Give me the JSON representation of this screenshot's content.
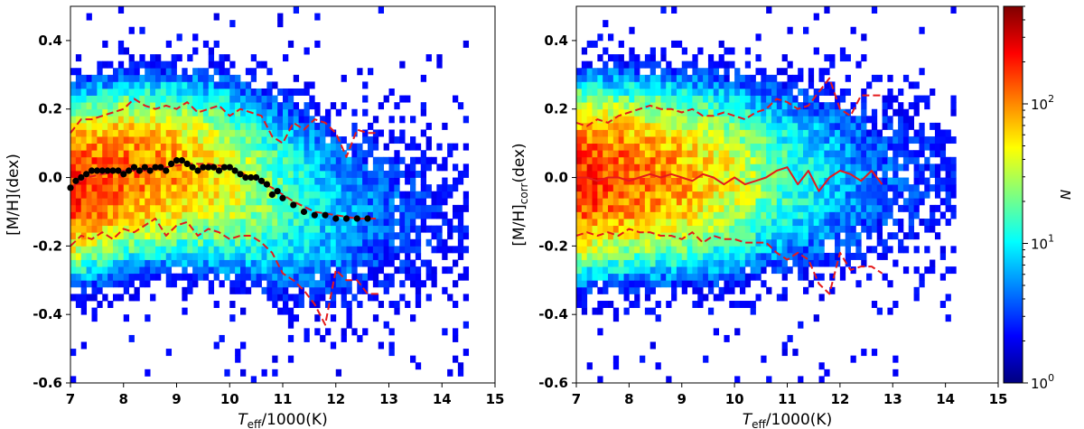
{
  "chart_data": [
    {
      "type": "heatmap",
      "panel": "left",
      "xlabel": {
        "main": "T",
        "sub": "eff",
        "rest": "/1000(K)"
      },
      "ylabel": {
        "main": "[M/H](dex)",
        "sub": ""
      },
      "xlim": [
        7,
        15
      ],
      "ylim": [
        -0.6,
        0.5
      ],
      "xticks": [
        "7",
        "8",
        "9",
        "10",
        "11",
        "12",
        "13",
        "14",
        "15"
      ],
      "yticks": [
        "-0.6",
        "-0.4",
        "-0.2",
        "0.0",
        "0.2",
        "0.4"
      ],
      "ytick_values": [
        -0.6,
        -0.4,
        -0.2,
        0.0,
        0.2,
        0.4
      ],
      "density": {
        "x_extent": [
          7.0,
          14.5
        ],
        "center": [
          [
            7.0,
            -0.03
          ],
          [
            8.0,
            0.01
          ],
          [
            9.0,
            0.02
          ],
          [
            10.0,
            0.0
          ],
          [
            11.0,
            -0.05
          ],
          [
            12.0,
            -0.1
          ],
          [
            13.0,
            -0.1
          ],
          [
            14.0,
            -0.1
          ],
          [
            14.5,
            -0.1
          ]
        ],
        "spread": [
          [
            7.0,
            0.16
          ],
          [
            9.0,
            0.17
          ],
          [
            10.5,
            0.2
          ],
          [
            11.5,
            0.24
          ],
          [
            12.5,
            0.25
          ],
          [
            14.5,
            0.27
          ]
        ],
        "peak_log10_count": [
          [
            7.0,
            2.2
          ],
          [
            8.0,
            2.05
          ],
          [
            9.0,
            1.85
          ],
          [
            10.0,
            1.55
          ],
          [
            11.0,
            1.05
          ],
          [
            12.0,
            0.65
          ],
          [
            13.0,
            0.35
          ],
          [
            14.0,
            0.05
          ],
          [
            14.5,
            0.0
          ]
        ]
      },
      "lines": [
        {
          "style": "dashed",
          "color": "#e41a1c",
          "x": [
            7.0,
            7.2,
            7.4,
            7.6,
            7.8,
            8.0,
            8.2,
            8.4,
            8.6,
            8.8,
            9.0,
            9.2,
            9.4,
            9.6,
            9.8,
            10.0,
            10.2,
            10.4,
            10.6,
            10.8,
            11.0,
            11.2,
            11.4,
            11.6,
            11.8,
            12.0,
            12.2,
            12.4,
            12.6,
            12.8
          ],
          "y": [
            0.13,
            0.17,
            0.17,
            0.18,
            0.19,
            0.2,
            0.23,
            0.21,
            0.2,
            0.21,
            0.2,
            0.22,
            0.19,
            0.2,
            0.21,
            0.18,
            0.2,
            0.19,
            0.18,
            0.12,
            0.1,
            0.16,
            0.14,
            0.17,
            0.16,
            0.13,
            0.06,
            0.14,
            0.13,
            0.13
          ]
        },
        {
          "style": "dashed",
          "color": "#e41a1c",
          "x": [
            7.0,
            7.2,
            7.4,
            7.6,
            7.8,
            8.0,
            8.2,
            8.4,
            8.6,
            8.8,
            9.0,
            9.2,
            9.4,
            9.6,
            9.8,
            10.0,
            10.2,
            10.4,
            10.6,
            10.8,
            11.0,
            11.2,
            11.4,
            11.6,
            11.8,
            12.0,
            12.2,
            12.4,
            12.6,
            12.8
          ],
          "y": [
            -0.2,
            -0.17,
            -0.18,
            -0.16,
            -0.18,
            -0.15,
            -0.16,
            -0.14,
            -0.12,
            -0.17,
            -0.14,
            -0.13,
            -0.17,
            -0.15,
            -0.16,
            -0.18,
            -0.17,
            -0.17,
            -0.19,
            -0.22,
            -0.28,
            -0.3,
            -0.33,
            -0.37,
            -0.43,
            -0.27,
            -0.3,
            -0.3,
            -0.34,
            -0.34
          ]
        },
        {
          "style": "dashed",
          "color": "#e41a1c",
          "x": [
            7.0,
            7.3,
            7.6,
            8.0,
            8.4,
            8.8,
            9.2,
            9.6,
            10.0,
            10.4,
            10.8,
            11.2,
            11.6,
            12.0,
            12.4,
            12.8
          ],
          "y": [
            -0.03,
            0.0,
            0.01,
            0.02,
            0.02,
            0.03,
            0.04,
            0.04,
            0.03,
            0.0,
            -0.03,
            -0.07,
            -0.1,
            -0.11,
            -0.12,
            -0.12
          ]
        }
      ],
      "points": {
        "color": "#000000",
        "x": [
          7.0,
          7.1,
          7.2,
          7.3,
          7.4,
          7.5,
          7.6,
          7.7,
          7.8,
          7.9,
          8.0,
          8.1,
          8.2,
          8.3,
          8.4,
          8.5,
          8.6,
          8.7,
          8.8,
          8.9,
          9.0,
          9.1,
          9.2,
          9.3,
          9.4,
          9.5,
          9.6,
          9.7,
          9.8,
          9.9,
          10.0,
          10.1,
          10.2,
          10.3,
          10.4,
          10.5,
          10.6,
          10.7,
          10.8,
          10.9,
          11.0,
          11.2,
          11.4,
          11.6,
          11.8,
          12.0,
          12.2,
          12.4,
          12.6
        ],
        "y": [
          -0.03,
          -0.01,
          0.0,
          0.01,
          0.02,
          0.02,
          0.02,
          0.02,
          0.02,
          0.02,
          0.01,
          0.02,
          0.03,
          0.02,
          0.03,
          0.02,
          0.03,
          0.03,
          0.02,
          0.04,
          0.05,
          0.05,
          0.04,
          0.03,
          0.02,
          0.03,
          0.03,
          0.03,
          0.02,
          0.03,
          0.03,
          0.02,
          0.01,
          0.0,
          0.0,
          0.0,
          -0.01,
          -0.02,
          -0.05,
          -0.04,
          -0.06,
          -0.08,
          -0.1,
          -0.11,
          -0.11,
          -0.12,
          -0.12,
          -0.12,
          -0.12
        ]
      }
    },
    {
      "type": "heatmap",
      "panel": "right",
      "xlabel": {
        "main": "T",
        "sub": "eff",
        "rest": "/1000(K)"
      },
      "ylabel": {
        "main": "[M/H]",
        "sub": "corr",
        "rest": "(dex)"
      },
      "xlim": [
        7,
        15
      ],
      "ylim": [
        -0.6,
        0.5
      ],
      "xticks": [
        "7",
        "8",
        "9",
        "10",
        "11",
        "12",
        "13",
        "14",
        "15"
      ],
      "yticks": [
        "-0.6",
        "-0.4",
        "-0.2",
        "0.0",
        "0.2",
        "0.4"
      ],
      "ytick_values": [
        -0.6,
        -0.4,
        -0.2,
        0.0,
        0.2,
        0.4
      ],
      "density": {
        "x_extent": [
          7.0,
          14.2
        ],
        "center": [
          [
            7.0,
            0.0
          ],
          [
            14.2,
            0.0
          ]
        ],
        "spread": [
          [
            7.0,
            0.17
          ],
          [
            9.0,
            0.18
          ],
          [
            10.5,
            0.2
          ],
          [
            11.5,
            0.23
          ],
          [
            12.5,
            0.25
          ],
          [
            14.2,
            0.26
          ]
        ],
        "peak_log10_count": [
          [
            7.0,
            2.25
          ],
          [
            8.0,
            2.05
          ],
          [
            9.0,
            1.85
          ],
          [
            10.0,
            1.5
          ],
          [
            11.0,
            1.0
          ],
          [
            12.0,
            0.6
          ],
          [
            13.0,
            0.3
          ],
          [
            14.0,
            0.05
          ],
          [
            14.2,
            0.0
          ]
        ]
      },
      "lines": [
        {
          "style": "dashed",
          "color": "#e41a1c",
          "x": [
            7.0,
            7.2,
            7.4,
            7.6,
            7.8,
            8.0,
            8.2,
            8.4,
            8.6,
            8.8,
            9.0,
            9.2,
            9.4,
            9.6,
            9.8,
            10.0,
            10.2,
            10.4,
            10.6,
            10.8,
            11.0,
            11.2,
            11.4,
            11.6,
            11.8,
            12.0,
            12.2,
            12.4,
            12.6,
            12.8
          ],
          "y": [
            0.16,
            0.15,
            0.17,
            0.16,
            0.18,
            0.19,
            0.2,
            0.21,
            0.2,
            0.2,
            0.19,
            0.2,
            0.18,
            0.18,
            0.19,
            0.18,
            0.17,
            0.19,
            0.2,
            0.23,
            0.22,
            0.2,
            0.21,
            0.25,
            0.29,
            0.2,
            0.18,
            0.24,
            0.24,
            0.24
          ]
        },
        {
          "style": "solid",
          "color": "#e41a1c",
          "x": [
            7.0,
            7.2,
            7.4,
            7.6,
            7.8,
            8.0,
            8.2,
            8.4,
            8.6,
            8.8,
            9.0,
            9.2,
            9.4,
            9.6,
            9.8,
            10.0,
            10.2,
            10.4,
            10.6,
            10.8,
            11.0,
            11.2,
            11.4,
            11.6,
            11.8,
            12.0,
            12.2,
            12.4,
            12.6,
            12.8
          ],
          "y": [
            0.0,
            0.0,
            -0.01,
            0.0,
            0.0,
            -0.01,
            0.0,
            0.01,
            0.0,
            0.01,
            0.0,
            -0.01,
            0.01,
            0.0,
            -0.02,
            0.0,
            -0.02,
            -0.01,
            0.0,
            0.02,
            0.03,
            -0.02,
            0.02,
            -0.04,
            0.0,
            0.02,
            0.01,
            -0.01,
            0.02,
            -0.02
          ]
        },
        {
          "style": "dashed",
          "color": "#e41a1c",
          "x": [
            7.0,
            7.2,
            7.4,
            7.6,
            7.8,
            8.0,
            8.2,
            8.4,
            8.6,
            8.8,
            9.0,
            9.2,
            9.4,
            9.6,
            9.8,
            10.0,
            10.2,
            10.4,
            10.6,
            10.8,
            11.0,
            11.2,
            11.4,
            11.6,
            11.8,
            12.0,
            12.2,
            12.4,
            12.6,
            12.8
          ],
          "y": [
            -0.17,
            -0.16,
            -0.17,
            -0.16,
            -0.17,
            -0.15,
            -0.16,
            -0.16,
            -0.17,
            -0.17,
            -0.18,
            -0.16,
            -0.19,
            -0.17,
            -0.18,
            -0.18,
            -0.19,
            -0.19,
            -0.19,
            -0.22,
            -0.24,
            -0.22,
            -0.24,
            -0.31,
            -0.34,
            -0.22,
            -0.27,
            -0.26,
            -0.26,
            -0.28
          ]
        }
      ]
    }
  ],
  "colorbar": {
    "label": "N",
    "scale": "log",
    "range": [
      1,
      500
    ],
    "ticks": [
      {
        "value": 1,
        "base": "10",
        "exp": "0"
      },
      {
        "value": 10,
        "base": "10",
        "exp": "1"
      },
      {
        "value": 100,
        "base": "10",
        "exp": "2"
      }
    ],
    "colormap": "jet"
  }
}
